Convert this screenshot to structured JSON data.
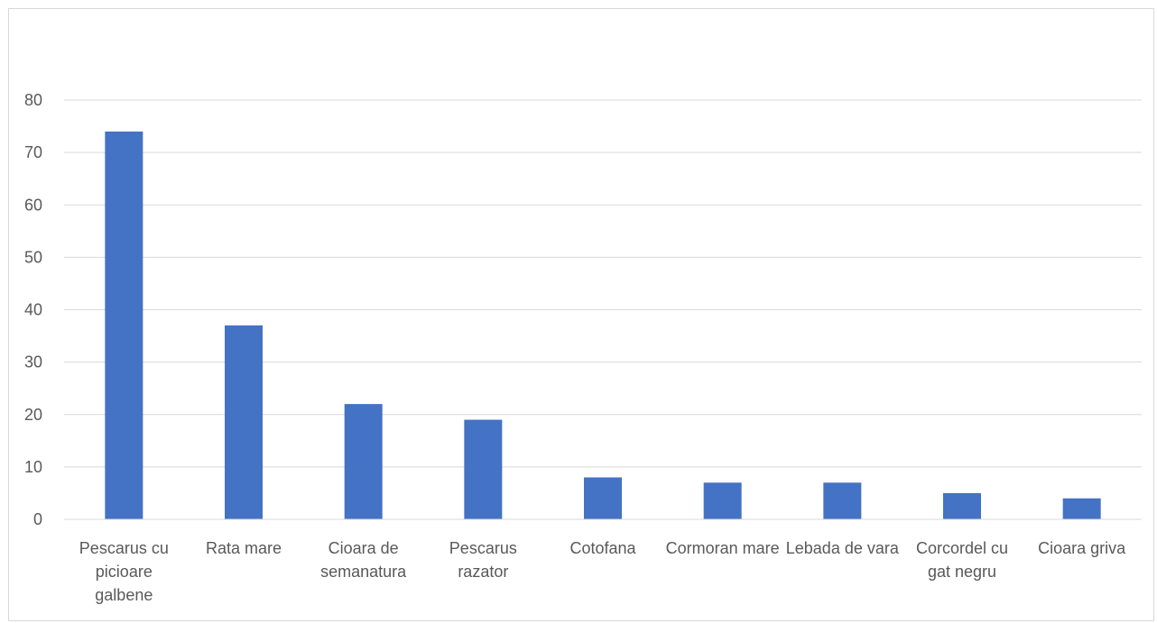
{
  "chart_data": {
    "type": "bar",
    "title": "",
    "xlabel": "",
    "ylabel": "",
    "ylim": [
      0,
      80
    ],
    "yticks": [
      0,
      10,
      20,
      30,
      40,
      50,
      60,
      70,
      80
    ],
    "ytick_labels": [
      "0",
      "10",
      "20",
      "30",
      "40",
      "50",
      "60",
      "70",
      "80"
    ],
    "grid": true,
    "legend": "none",
    "bar_color": "#4472c4",
    "categories": [
      "Pescarus cu picioare galbene",
      "Rata mare",
      "Cioara de semanatura",
      "Pescarus razator",
      "Cotofana",
      "Cormoran mare",
      "Lebada de vara",
      "Corcordel cu gat negru",
      "Cioara griva"
    ],
    "values": [
      74,
      37,
      22,
      19,
      8,
      7,
      7,
      5,
      4
    ]
  }
}
